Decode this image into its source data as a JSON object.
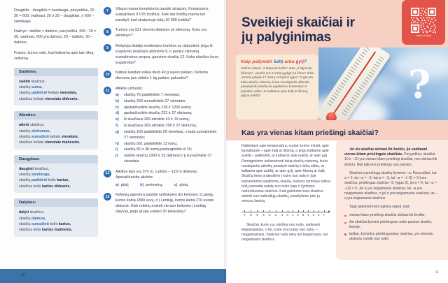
{
  "colors": {
    "accent_blue": "#2e6cb4",
    "navy": "#1e2c50",
    "salmon_bg": "#f6d0c3",
    "panel_pink": "#fbe9e1",
    "bubble_cream": "#f8ead6",
    "qr_red": "#e2544a",
    "bottom_bar_blue": "#3e73aa",
    "box_bg": "#e7ecf3",
    "box_header_bg": "#ccd7e5"
  },
  "left_page": {
    "page_number": "10",
    "intro": [
      "Daugiklis · daugiklis = sandauga, pavyzdžiui, 20 · 30 = 600, vadinasi, 20 ir 30 – daugikliai, o 600 – sandauga.",
      "Dalinys : daliklis = dalmuo, pavyzdžiui, 600 : 20 = 30, vadinasi, 600 yra dalinys, 20 – daliklis, 30 – dalmuo.",
      "Frazės, kurios rodo, kad kalbama apie tam tikrą veiksmą."
    ],
    "boxes": [
      {
        "title": "Sudėties:",
        "lines": [
          [
            {
              "t": "sudėti",
              "c": "k"
            },
            {
              "t": " skaičius,"
            }
          ],
          [
            {
              "t": "skaičių "
            },
            {
              "t": "suma,",
              "c": "kb"
            }
          ],
          [
            {
              "t": "skaičių "
            },
            {
              "t": "padidinti",
              "c": "kb"
            },
            {
              "t": " keliais "
            },
            {
              "t": "vienetais,",
              "c": "k"
            }
          ],
          [
            {
              "t": "skaičius keliais "
            },
            {
              "t": "vienetais didesnis.",
              "c": "k"
            }
          ]
        ]
      },
      {
        "title": "Atimties:",
        "lines": [
          [
            {
              "t": "atimti",
              "c": "k"
            },
            {
              "t": " skaičius,"
            }
          ],
          [
            {
              "t": "skaičių "
            },
            {
              "t": "skirtumas,",
              "c": "kb"
            }
          ],
          [
            {
              "t": "skaičių "
            },
            {
              "t": "sumažinti",
              "c": "kb"
            },
            {
              "t": " keliais "
            },
            {
              "t": "vienetais,",
              "c": "k"
            }
          ],
          [
            {
              "t": "skaičius keliais "
            },
            {
              "t": "vienetais mažesnis.",
              "c": "k"
            }
          ]
        ]
      },
      {
        "title": "Daugybos:",
        "lines": [
          [
            {
              "t": "dauginti",
              "c": "k"
            },
            {
              "t": " skaičius,"
            }
          ],
          [
            {
              "t": "skaičių "
            },
            {
              "t": "sandauga,",
              "c": "kb"
            }
          ],
          [
            {
              "t": "skaičių "
            },
            {
              "t": "padidinti",
              "c": "kb"
            },
            {
              "t": " kelis "
            },
            {
              "t": "kartus,",
              "c": "k"
            }
          ],
          [
            {
              "t": "skaičius kelis "
            },
            {
              "t": "kartus didesnis.",
              "c": "k"
            }
          ]
        ]
      },
      {
        "title": "Dalybos:",
        "lines": [
          [
            {
              "t": "dalyti",
              "c": "k"
            },
            {
              "t": " skaičius,"
            }
          ],
          [
            {
              "t": "skaičių "
            },
            {
              "t": "dalmuo,",
              "c": "kb"
            }
          ],
          [
            {
              "t": "skaičių "
            },
            {
              "t": "sumažinti",
              "c": "kb"
            },
            {
              "t": " kelis "
            },
            {
              "t": "kartus,",
              "c": "k"
            }
          ],
          [
            {
              "t": "skaičius kelis "
            },
            {
              "t": "kartus mažesnis.",
              "c": "k"
            }
          ]
        ]
      }
    ],
    "exercises": [
      {
        "num": "7",
        "text": "Viliaus mama kompiuteriu parašė straipsnį. Kompiuteris suskaičiavo 9 078 žodžius. Kiek dar žodžių mama turi parašyti, kad straipsnyje būtų 10 000 žodžių?"
      },
      {
        "num": "8",
        "text": "Turinys yra 521 vienetu didesnis už skirtumą. Koks yra atėminys?"
      },
      {
        "num": "9",
        "text": "Mokytoja išdalijo mokiniams korteles su užduotimi: jeigu iš sugalvoto skaičiaus atimsime 6, o paskui skirtumą sumažinsime perpus, gausime skaičių 12. Koks skaičius buvo sugalvotas?"
      },
      {
        "num": "10",
        "text": "Katinui kasdien reikia duoti 40 g sauso pašaro. Kelioms dienoms jam užteks 1 kg pašaro pakuotės?"
      },
      {
        "num": "11",
        "text": "Atlikite užduotis:",
        "sub": [
          {
            "l": "a)",
            "t": "skaičių 75 padidinkite 7 vienetais;"
          },
          {
            "l": "b)",
            "t": "skaičių 269 sumažinkite 27 vienetais;"
          },
          {
            "l": "c)",
            "t": "apskaičiuokite skaičių 138 ir 1265 sumą;"
          },
          {
            "l": "d)",
            "t": "apskaičiuokite skaičių 222 ir 27 skirtumą;"
          },
          {
            "l": "e)",
            "t": "iš skaičiaus 269 atimkite 43 ir 19 sumą;"
          },
          {
            "l": "f)",
            "t": "iš skaičiaus 369 atimkite 256 ir 37 skirtumą;"
          },
          {
            "l": "g)",
            "t": "skaičių 169 padidinkite 59 vienetais, o tada sumažinkite 27 vienetais;"
          },
          {
            "l": "h)",
            "t": "skaičių 561 padidinkite 13 kartų;"
          },
          {
            "l": "i)",
            "t": "skaičių 56 ir 38 sumą padauginkite iš 26;"
          },
          {
            "l": "j)",
            "t": "raskite skaičių 1000 ir 25 dalmenį ir jį sumažinkite 37 vienetais."
          }
        ]
      },
      {
        "num": "12",
        "text": "Aikštės ilgis yra 375 m, o plotis – 123 m didesnis. Apskaičiuokite aikštės:",
        "inline_sub": [
          {
            "l": "a)",
            "t": "plotį;"
          },
          {
            "l": "b)",
            "t": "perimetrą;"
          },
          {
            "l": "c)",
            "t": "plotą."
          }
        ]
      },
      {
        "num": "13",
        "text": "Kelionių agentūra pasiūlė šeštokams dvi keliones: į Latviją, kurios kaina 1890 eurų, ir į Lenkiją, kurios kaina 270 eurais didesnė. Kiek reikėtų mokėti vienam kelionės į Lenkiją dalyviui, jeigu grupę sudaro 30 keliautojų?"
      }
    ]
  },
  "right_page": {
    "page_number": "11",
    "title": "Sveikieji skaičiai ir jų palyginimas",
    "qr": {
      "caption": "moksl.ink/bpw"
    },
    "bubble": {
      "title_segments": [
        {
          "t": "Kaip pažymėti ",
          "c": "hw-red"
        },
        {
          "t": "šaltį",
          "c": "hw-blue"
        },
        {
          "t": " arba ",
          "c": "hw-red"
        },
        {
          "t": "gylį",
          "c": "hw-mag"
        },
        {
          "t": "?",
          "c": "hw-blue"
        }
      ],
      "text": "Galime sakyti: „3 laipsniai šalčio“ arba „4 laipsniai šilumos“, „tunelis yra 2 metrų gylyje po žeme“ arba „tunelis pakyla 17 metrų virš jūros lygio“. O gal yra tokia skaičių sistema, kuria naudojantis užtenka pasakyti tik skaičių be papildomo komentaro ir pasidaro aišku, ar kalbama apie šaltį ar šilumą, gylį ar aukštį?"
    },
    "photo": {
      "question_mark": "?"
    },
    "section_heading": "Kas yra vienas kitam priešingi skaičiai?",
    "col_left": {
      "p1": "Kalbėdami apie temperatūrą, nuolat turime minėti, apie ką kalbame – apie šaltį ar šilumą, o jeigu kalbame apie aukštį – patikslinti, ar kalbame apie aukštį, ar apie gylį. Pamėginkime sukonstruoti tokią skaičių sistemą, kuria naudojantis užtektų pasakyti skaičių ir būtų aišku, ar kalbama apie aukštį, ar apie gylį, apie šilumą ar šaltį. Skaičių tiesę pratęskime į kairę nuo nulio ir joje pažymėkime papildomų skaičių, kuriuos žymintys taškai būtų vienodai nutolę nuo nulio kaip ir žymintys natūraliuosius skaičius. Kad galėtume tuos skaičius atskirti nuo natūraliųjų skaičių, parašykime prie jų minuso ženklą.",
      "p2": "Skaičiai, kurie yra į dešinę nuo nulio, vadinami teigiamaisiais, o tie, kurie yra į kairę nuo nulio, – neigiamaisiais. Skaičius nulis nėra nei teigiamasis, nei neigiamasis skaičius."
    },
    "number_line": [
      "-7",
      "-6",
      "-5",
      "-4",
      "-3",
      "-2",
      "-1",
      "0",
      "1",
      "2",
      "3",
      "4",
      "5",
      "6",
      "7"
    ],
    "panel": {
      "bold_intro": "Jei du skaičiai skiriasi tik ženklu, jie vadinami vienas kitam priešingais skaičiais.",
      "p1_rest": " Pavyzdžiui, skaičiai 10 ir –10 yra vienas kitam priešingi skaičiai, nes skiriasi tik ženklu. Nulį laikome priešingu sau pačiam.",
      "p2": "Skaičiui a priešingą skaičių žymime –a. Pavyzdžiui, kai a = 2, tai –a = –2; kai a = –3, tai –a = –(–3) = 3 (nes skaičius, priešingas skaičiui –3, lygus 3), jei a = 0, tai –a = –(0) = 0. Jei a yra teigiamasis skaičius, tai –a yra neigiamasis skaičius, o jei a yra neigiamasis skaičius, tai –a yra teigiamasis skaičius.",
      "summary_intro": "Taigi apibendrinant galima sakyti, kad:",
      "bullets": [
        "vienas kitam priešingi skaičiai skiriasi tik ženklu;",
        "šie skaičiai žymimi priešingose nulio pusėse skaičių tiesėje;",
        "taškai, žymintys priešinguosius skaičius, yra vienodu atstumu nutolę nuo nulio."
      ]
    }
  }
}
